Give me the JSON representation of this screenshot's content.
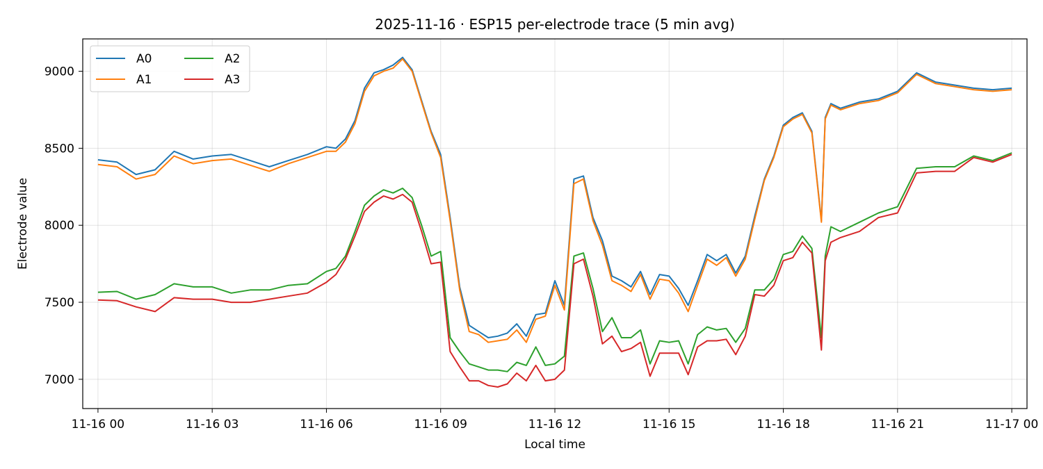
{
  "chart_data": {
    "type": "line",
    "title": "2025-11-16 · ESP15 per-electrode trace (5 min avg)",
    "xlabel": "Local time",
    "ylabel": "Electrode value",
    "x_unit": "hours",
    "xlim": [
      -0.4,
      24.4
    ],
    "ylim": [
      6810,
      9210
    ],
    "x_ticks": [
      {
        "value": 0,
        "label": "11-16 00"
      },
      {
        "value": 3,
        "label": "11-16 03"
      },
      {
        "value": 6,
        "label": "11-16 06"
      },
      {
        "value": 9,
        "label": "11-16 09"
      },
      {
        "value": 12,
        "label": "11-16 12"
      },
      {
        "value": 15,
        "label": "11-16 15"
      },
      {
        "value": 18,
        "label": "11-16 18"
      },
      {
        "value": 21,
        "label": "11-16 21"
      },
      {
        "value": 24,
        "label": "11-17 00"
      }
    ],
    "y_ticks": [
      {
        "value": 7000,
        "label": "7000"
      },
      {
        "value": 7500,
        "label": "7500"
      },
      {
        "value": 8000,
        "label": "8000"
      },
      {
        "value": 8500,
        "label": "8500"
      },
      {
        "value": 9000,
        "label": "9000"
      }
    ],
    "grid": true,
    "legend_position": "top-left",
    "legend_columns": 2,
    "series": [
      {
        "name": "A0",
        "color": "#1f77b4",
        "x": [
          0,
          0.5,
          1,
          1.5,
          2,
          2.5,
          3,
          3.5,
          4,
          4.5,
          5,
          5.5,
          6,
          6.25,
          6.5,
          6.75,
          7,
          7.25,
          7.5,
          7.75,
          8,
          8.25,
          8.5,
          8.75,
          9,
          9.25,
          9.5,
          9.75,
          10,
          10.25,
          10.5,
          10.75,
          11,
          11.25,
          11.5,
          11.75,
          12,
          12.25,
          12.5,
          12.75,
          13,
          13.25,
          13.5,
          13.75,
          14,
          14.25,
          14.5,
          14.75,
          15,
          15.25,
          15.5,
          15.75,
          16,
          16.25,
          16.5,
          16.75,
          17,
          17.25,
          17.5,
          17.75,
          18,
          18.25,
          18.5,
          18.75,
          19,
          19.1,
          19.25,
          19.5,
          20,
          20.5,
          21,
          21.5,
          22,
          22.5,
          23,
          23.5,
          24
        ],
        "y": [
          8425,
          8410,
          8330,
          8360,
          8480,
          8430,
          8450,
          8460,
          8420,
          8380,
          8420,
          8460,
          8510,
          8500,
          8560,
          8680,
          8890,
          8990,
          9010,
          9040,
          9090,
          9010,
          8810,
          8610,
          8460,
          8050,
          7600,
          7350,
          7310,
          7270,
          7280,
          7300,
          7360,
          7280,
          7420,
          7430,
          7640,
          7480,
          8300,
          8320,
          8050,
          7900,
          7670,
          7640,
          7600,
          7700,
          7550,
          7680,
          7670,
          7590,
          7480,
          7640,
          7810,
          7770,
          7810,
          7690,
          7800,
          8060,
          8300,
          8450,
          8650,
          8700,
          8730,
          8610,
          8030,
          8700,
          8790,
          8760,
          8800,
          8820,
          8870,
          8990,
          8930,
          8910,
          8890,
          8880,
          8890
        ]
      },
      {
        "name": "A1",
        "color": "#ff7f0e",
        "x": [
          0,
          0.5,
          1,
          1.5,
          2,
          2.5,
          3,
          3.5,
          4,
          4.5,
          5,
          5.5,
          6,
          6.25,
          6.5,
          6.75,
          7,
          7.25,
          7.5,
          7.75,
          8,
          8.25,
          8.5,
          8.75,
          9,
          9.25,
          9.5,
          9.75,
          10,
          10.25,
          10.5,
          10.75,
          11,
          11.25,
          11.5,
          11.75,
          12,
          12.25,
          12.5,
          12.75,
          13,
          13.25,
          13.5,
          13.75,
          14,
          14.25,
          14.5,
          14.75,
          15,
          15.25,
          15.5,
          15.75,
          16,
          16.25,
          16.5,
          16.75,
          17,
          17.25,
          17.5,
          17.75,
          18,
          18.25,
          18.5,
          18.75,
          19,
          19.1,
          19.25,
          19.5,
          20,
          20.5,
          21,
          21.5,
          22,
          22.5,
          23,
          23.5,
          24
        ],
        "y": [
          8395,
          8380,
          8300,
          8330,
          8450,
          8400,
          8420,
          8430,
          8390,
          8350,
          8400,
          8440,
          8480,
          8480,
          8540,
          8660,
          8870,
          8970,
          9000,
          9020,
          9080,
          9000,
          8800,
          8600,
          8440,
          8030,
          7580,
          7310,
          7290,
          7240,
          7250,
          7260,
          7320,
          7240,
          7390,
          7410,
          7610,
          7450,
          8270,
          8300,
          8030,
          7870,
          7640,
          7610,
          7570,
          7680,
          7520,
          7650,
          7640,
          7560,
          7440,
          7610,
          7780,
          7740,
          7790,
          7670,
          7780,
          8040,
          8290,
          8440,
          8640,
          8690,
          8720,
          8600,
          8020,
          8690,
          8780,
          8750,
          8790,
          8810,
          8860,
          8980,
          8920,
          8900,
          8880,
          8870,
          8880
        ]
      },
      {
        "name": "A2",
        "color": "#2ca02c",
        "x": [
          0,
          0.5,
          1,
          1.5,
          2,
          2.5,
          3,
          3.5,
          4,
          4.5,
          5,
          5.5,
          6,
          6.25,
          6.5,
          6.75,
          7,
          7.25,
          7.5,
          7.75,
          8,
          8.25,
          8.5,
          8.75,
          9,
          9.25,
          9.5,
          9.75,
          10,
          10.25,
          10.5,
          10.75,
          11,
          11.25,
          11.5,
          11.75,
          12,
          12.25,
          12.5,
          12.75,
          13,
          13.25,
          13.5,
          13.75,
          14,
          14.25,
          14.5,
          14.75,
          15,
          15.25,
          15.5,
          15.75,
          16,
          16.25,
          16.5,
          16.75,
          17,
          17.25,
          17.5,
          17.75,
          18,
          18.25,
          18.5,
          18.75,
          19,
          19.1,
          19.25,
          19.5,
          20,
          20.5,
          21,
          21.5,
          22,
          22.5,
          23,
          23.5,
          24
        ],
        "y": [
          7565,
          7570,
          7520,
          7550,
          7620,
          7600,
          7600,
          7560,
          7580,
          7580,
          7610,
          7620,
          7700,
          7720,
          7800,
          7960,
          8130,
          8190,
          8230,
          8210,
          8240,
          8180,
          8000,
          7800,
          7830,
          7270,
          7180,
          7100,
          7080,
          7060,
          7060,
          7050,
          7110,
          7090,
          7210,
          7090,
          7100,
          7150,
          7800,
          7820,
          7590,
          7310,
          7400,
          7270,
          7270,
          7320,
          7100,
          7250,
          7240,
          7250,
          7100,
          7290,
          7340,
          7320,
          7330,
          7240,
          7330,
          7580,
          7580,
          7650,
          7810,
          7830,
          7930,
          7850,
          7270,
          7800,
          7990,
          7960,
          8020,
          8080,
          8120,
          8370,
          8380,
          8380,
          8450,
          8420,
          8470
        ]
      },
      {
        "name": "A3",
        "color": "#d62728",
        "x": [
          0,
          0.5,
          1,
          1.5,
          2,
          2.5,
          3,
          3.5,
          4,
          4.5,
          5,
          5.5,
          6,
          6.25,
          6.5,
          6.75,
          7,
          7.25,
          7.5,
          7.75,
          8,
          8.25,
          8.5,
          8.75,
          9,
          9.25,
          9.5,
          9.75,
          10,
          10.25,
          10.5,
          10.75,
          11,
          11.25,
          11.5,
          11.75,
          12,
          12.25,
          12.5,
          12.75,
          13,
          13.25,
          13.5,
          13.75,
          14,
          14.25,
          14.5,
          14.75,
          15,
          15.25,
          15.5,
          15.75,
          16,
          16.25,
          16.5,
          16.75,
          17,
          17.25,
          17.5,
          17.75,
          18,
          18.25,
          18.5,
          18.75,
          19,
          19.1,
          19.25,
          19.5,
          20,
          20.5,
          21,
          21.5,
          22,
          22.5,
          23,
          23.5,
          24
        ],
        "y": [
          7515,
          7510,
          7470,
          7440,
          7530,
          7520,
          7520,
          7500,
          7500,
          7520,
          7540,
          7560,
          7630,
          7680,
          7780,
          7930,
          8090,
          8150,
          8190,
          8170,
          8200,
          8150,
          7960,
          7750,
          7760,
          7180,
          7080,
          6990,
          6990,
          6960,
          6950,
          6970,
          7040,
          6990,
          7090,
          6990,
          7000,
          7060,
          7750,
          7780,
          7540,
          7230,
          7280,
          7180,
          7200,
          7240,
          7020,
          7170,
          7170,
          7170,
          7030,
          7210,
          7250,
          7250,
          7260,
          7160,
          7280,
          7550,
          7540,
          7610,
          7770,
          7790,
          7890,
          7820,
          7190,
          7770,
          7890,
          7920,
          7960,
          8050,
          8080,
          8340,
          8350,
          8350,
          8440,
          8410,
          8460
        ]
      }
    ]
  }
}
